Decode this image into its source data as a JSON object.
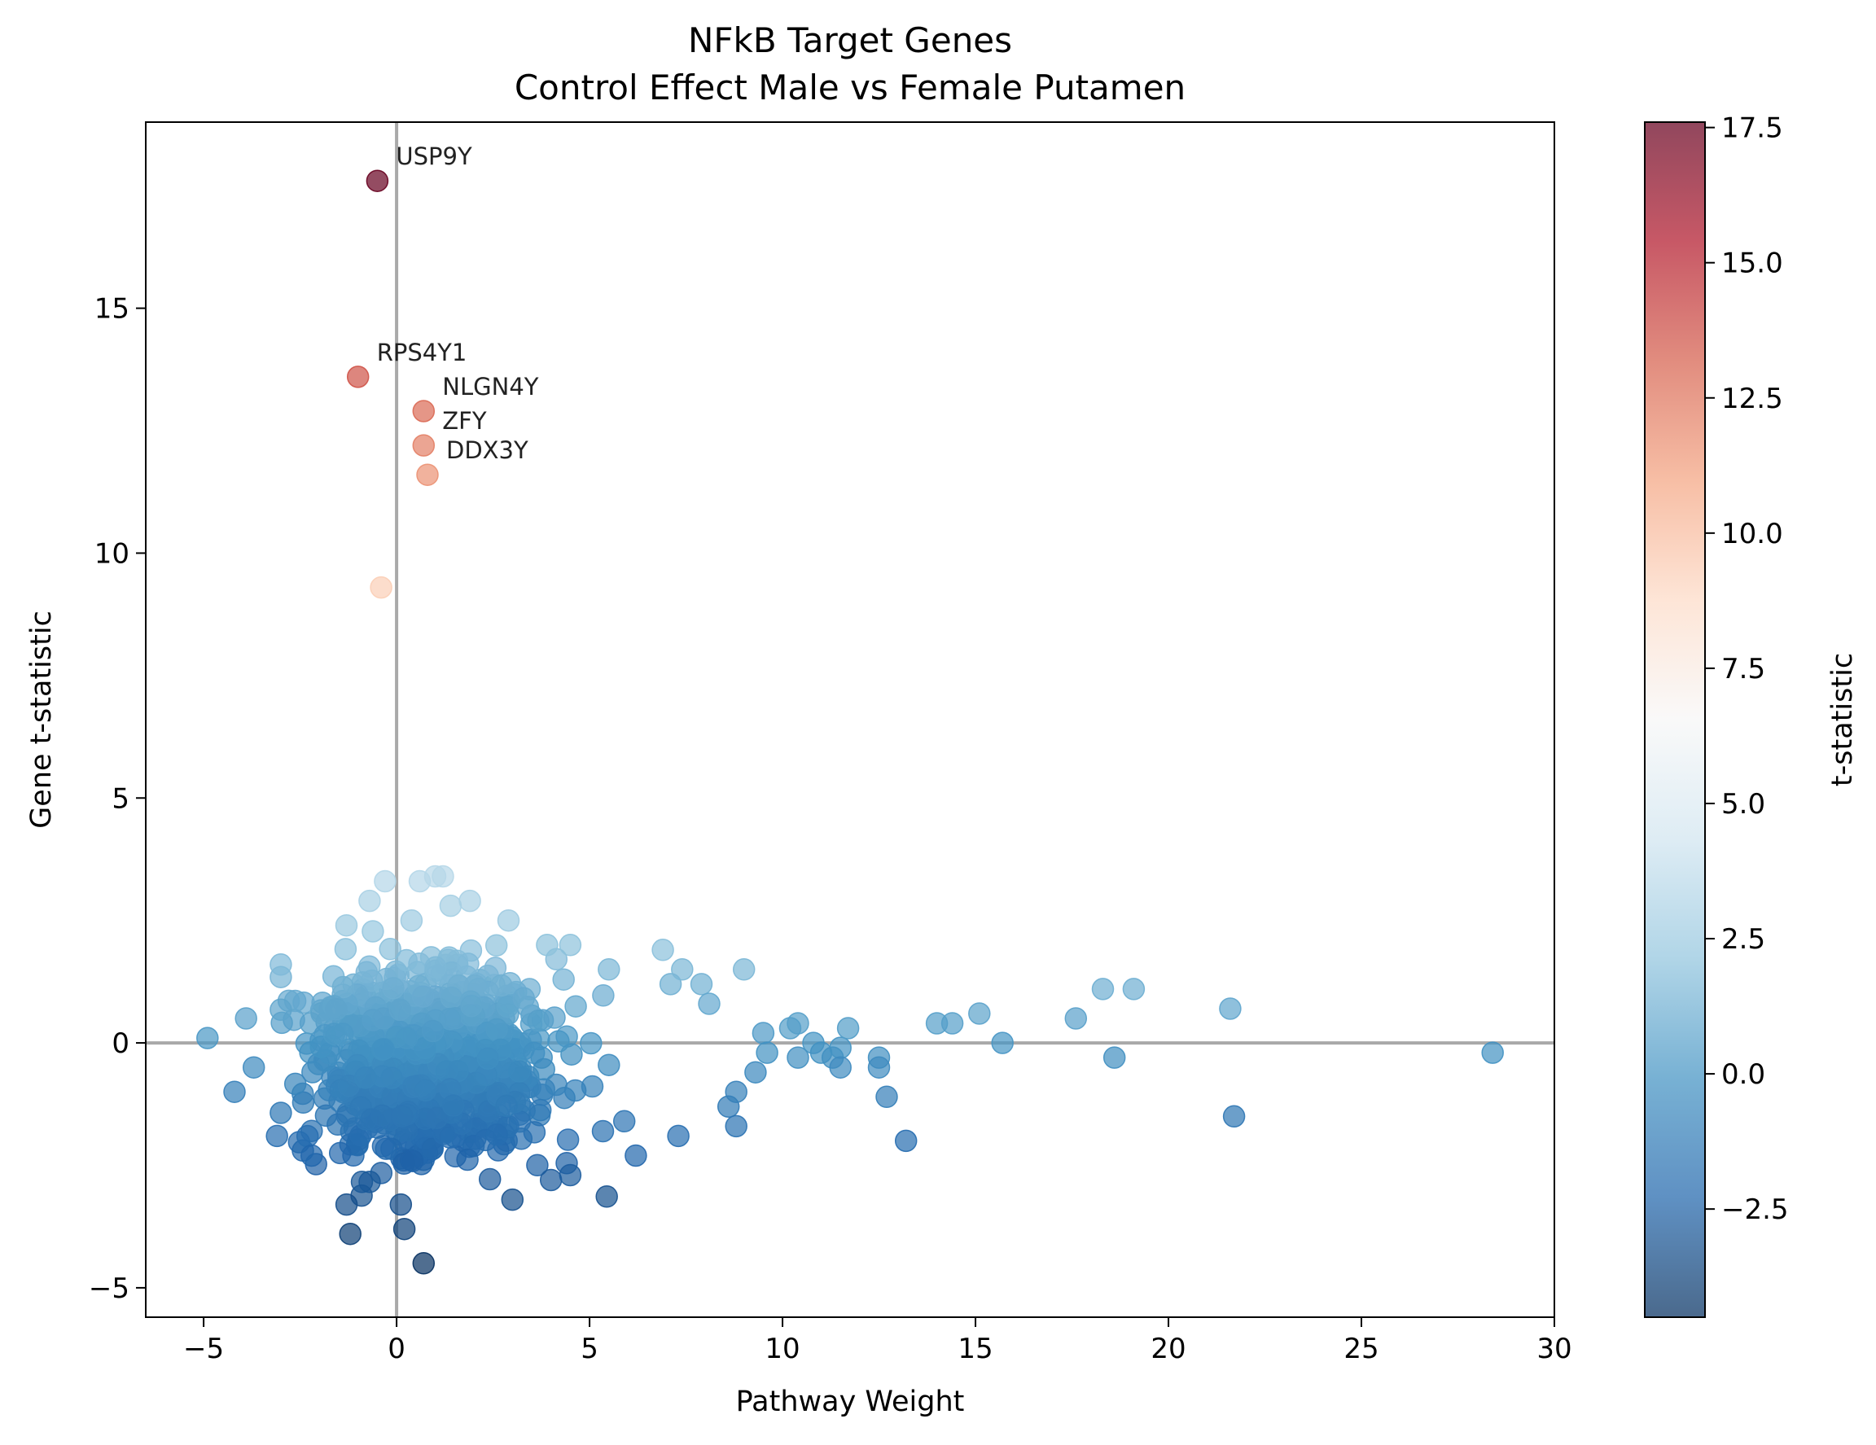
{
  "chart_data": {
    "type": "scatter",
    "title": [
      "NFkB Target Genes",
      "Control Effect Male vs Female Putamen"
    ],
    "xlabel": "Pathway Weight",
    "ylabel": "Gene t-statistic",
    "xlim": [
      -6.5,
      30.0
    ],
    "ylim": [
      -5.6,
      18.8
    ],
    "xticks": [
      -5,
      0,
      5,
      10,
      15,
      20,
      25,
      30
    ],
    "xtick_labels": [
      "−5",
      "0",
      "5",
      "10",
      "15",
      "20",
      "25",
      "30"
    ],
    "yticks": [
      -5,
      0,
      5,
      10,
      15
    ],
    "ytick_labels": [
      "−5",
      "0",
      "5",
      "10",
      "15"
    ],
    "reference_lines": {
      "x": 0,
      "y": 0,
      "color": "#a9a9a9"
    },
    "grid": false,
    "colormap": "RdBu_r",
    "colorbar": {
      "label": "t-statistic",
      "vmin": -4.5,
      "vmax": 17.6,
      "ticks": [
        -2.5,
        0.0,
        2.5,
        5.0,
        7.5,
        10.0,
        12.5,
        15.0,
        17.5
      ],
      "tick_labels": [
        "−2.5",
        "0.0",
        "2.5",
        "5.0",
        "7.5",
        "10.0",
        "12.5",
        "15.0",
        "17.5"
      ]
    },
    "annotations": [
      {
        "text": "USP9Y",
        "x": -0.5,
        "y": 17.6
      },
      {
        "text": "RPS4Y1",
        "x": -1.0,
        "y": 13.6
      },
      {
        "text": "NLGN4Y",
        "x": 0.7,
        "y": 12.9
      },
      {
        "text": "ZFY",
        "x": 0.7,
        "y": 12.2
      },
      {
        "text": "DDX3Y",
        "x": 0.8,
        "y": 11.6
      }
    ],
    "highlighted_points": [
      {
        "x": -0.5,
        "y": 17.6
      },
      {
        "x": -1.0,
        "y": 13.6
      },
      {
        "x": 0.7,
        "y": 12.9
      },
      {
        "x": 0.7,
        "y": 12.2
      },
      {
        "x": 0.8,
        "y": 11.6
      },
      {
        "x": -0.4,
        "y": 9.3
      }
    ],
    "outlier_points": [
      {
        "x": -4.9,
        "y": 0.1
      },
      {
        "x": -4.2,
        "y": -1.0
      },
      {
        "x": -3.9,
        "y": 0.5
      },
      {
        "x": -3.7,
        "y": -0.5
      },
      {
        "x": -3.1,
        "y": -1.9
      },
      {
        "x": -3.0,
        "y": 1.6
      },
      {
        "x": -2.2,
        "y": -2.3
      },
      {
        "x": -1.3,
        "y": 2.4
      },
      {
        "x": -1.2,
        "y": -3.9
      },
      {
        "x": -0.7,
        "y": 2.9
      },
      {
        "x": -0.3,
        "y": 3.3
      },
      {
        "x": 0.2,
        "y": -3.8
      },
      {
        "x": 0.7,
        "y": -4.5
      },
      {
        "x": 0.6,
        "y": 3.3
      },
      {
        "x": 1.0,
        "y": 3.4
      },
      {
        "x": 1.2,
        "y": 3.4
      },
      {
        "x": 1.4,
        "y": 2.8
      },
      {
        "x": 1.9,
        "y": 2.9
      },
      {
        "x": 2.9,
        "y": 2.5
      },
      {
        "x": 3.9,
        "y": 2.0
      },
      {
        "x": 3.0,
        "y": -3.2
      },
      {
        "x": 4.0,
        "y": -2.8
      },
      {
        "x": 4.5,
        "y": 2.0
      },
      {
        "x": 4.5,
        "y": -2.7
      },
      {
        "x": 5.5,
        "y": 1.5
      },
      {
        "x": 5.9,
        "y": -1.6
      },
      {
        "x": 6.2,
        "y": -2.3
      },
      {
        "x": 6.9,
        "y": 1.9
      },
      {
        "x": 7.1,
        "y": 1.2
      },
      {
        "x": 7.3,
        "y": -1.9
      },
      {
        "x": 7.4,
        "y": 1.5
      },
      {
        "x": 7.9,
        "y": 1.2
      },
      {
        "x": 8.1,
        "y": 0.8
      },
      {
        "x": 8.6,
        "y": -1.3
      },
      {
        "x": 8.8,
        "y": -1.0
      },
      {
        "x": 8.8,
        "y": -1.7
      },
      {
        "x": 9.0,
        "y": 1.5
      },
      {
        "x": 9.3,
        "y": -0.6
      },
      {
        "x": 9.5,
        "y": 0.2
      },
      {
        "x": 9.6,
        "y": -0.2
      },
      {
        "x": 10.2,
        "y": 0.3
      },
      {
        "x": 10.4,
        "y": 0.4
      },
      {
        "x": 10.4,
        "y": -0.3
      },
      {
        "x": 10.8,
        "y": 0.0
      },
      {
        "x": 11.0,
        "y": -0.2
      },
      {
        "x": 11.3,
        "y": -0.3
      },
      {
        "x": 11.5,
        "y": -0.1
      },
      {
        "x": 11.5,
        "y": -0.5
      },
      {
        "x": 11.7,
        "y": 0.3
      },
      {
        "x": 12.5,
        "y": -0.3
      },
      {
        "x": 12.5,
        "y": -0.5
      },
      {
        "x": 12.7,
        "y": -1.1
      },
      {
        "x": 13.2,
        "y": -2.0
      },
      {
        "x": 14.0,
        "y": 0.4
      },
      {
        "x": 14.4,
        "y": 0.4
      },
      {
        "x": 15.1,
        "y": 0.6
      },
      {
        "x": 15.7,
        "y": 0.0
      },
      {
        "x": 17.6,
        "y": 0.5
      },
      {
        "x": 18.3,
        "y": 1.1
      },
      {
        "x": 18.6,
        "y": -0.3
      },
      {
        "x": 19.1,
        "y": 1.1
      },
      {
        "x": 21.6,
        "y": 0.7
      },
      {
        "x": 21.7,
        "y": -1.5
      },
      {
        "x": 28.4,
        "y": -0.2
      }
    ],
    "dense_cluster": {
      "description_level": "approximate",
      "x_range": [
        -3.0,
        5.5
      ],
      "y_range": [
        -3.3,
        2.5
      ],
      "approx_points": 900
    }
  }
}
